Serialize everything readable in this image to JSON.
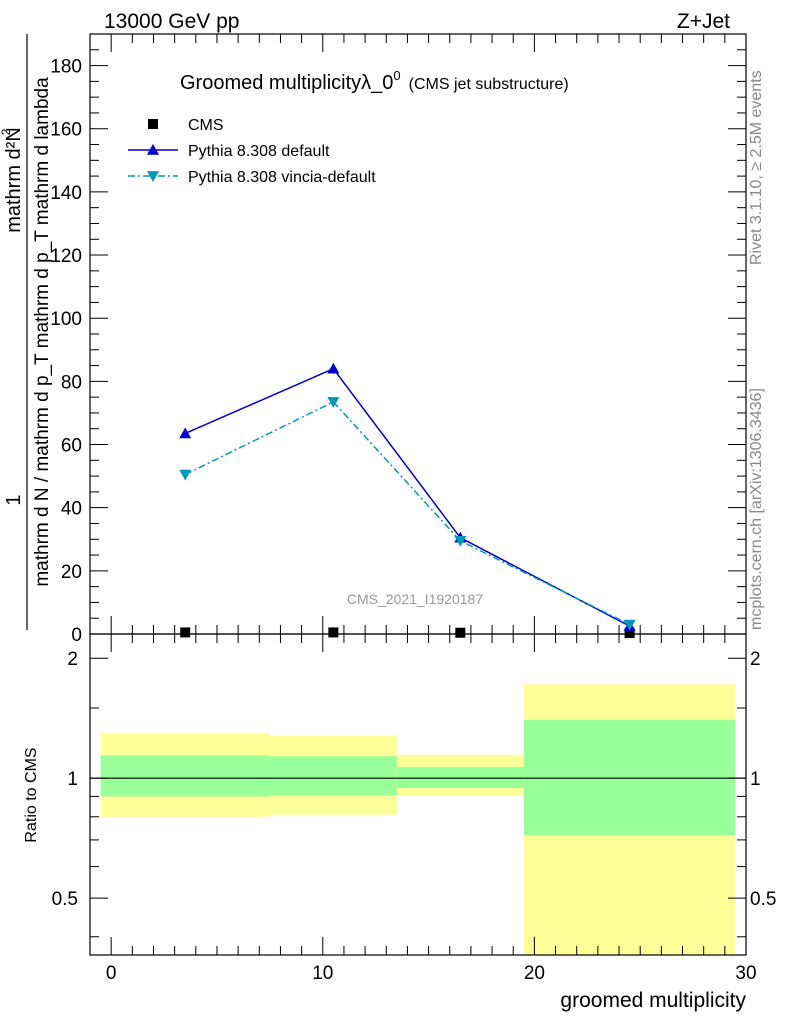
{
  "header": {
    "left": "13000 GeV pp",
    "right": "Z+Jet"
  },
  "side_labels": {
    "rivet": "Rivet 3.1.10, ≥ 2.5M events",
    "mcplots": "mcplots.cern.ch [arXiv:1306.3436]"
  },
  "watermark": "CMS_2021_I1920187",
  "chart_data": [
    {
      "type": "line",
      "title_main": "Groomed multiplicityλ_0",
      "title_sup": "0",
      "title_sub": "(CMS jet substructure)",
      "ylabel_num": "mathrm d²N",
      "ylabel_num_sup": "2",
      "ylabel_lead": "1",
      "ylabel_den": "mathrm d N / mathrm d p_T mathrm d p_T mathrm d lambda",
      "ylim": [
        0,
        190
      ],
      "xlim": [
        -1,
        30
      ],
      "ytick_labels": [
        "0",
        "20",
        "40",
        "60",
        "80",
        "100",
        "120",
        "140",
        "160",
        "180"
      ],
      "yticks": [
        0,
        20,
        40,
        60,
        80,
        100,
        120,
        140,
        160,
        180
      ],
      "legend_position": "top-left",
      "series": [
        {
          "name": "CMS",
          "marker": "square",
          "color": "#000000",
          "x": [
            3.5,
            10.5,
            16.5,
            24.5
          ],
          "y": [
            0.5,
            0.5,
            0.4,
            0.3
          ]
        },
        {
          "name": "Pythia 8.308 default",
          "marker": "triangle-up",
          "color": "#0000cc",
          "x": [
            3.5,
            10.5,
            16.5,
            24.5
          ],
          "y": [
            63.5,
            84,
            30.5,
            2.5
          ]
        },
        {
          "name": "Pythia 8.308 vincia-default",
          "marker": "triangle-down",
          "color": "#0099bb",
          "x": [
            3.5,
            10.5,
            16.5,
            24.5
          ],
          "y": [
            50.5,
            73.5,
            29.5,
            3.0
          ]
        }
      ]
    },
    {
      "type": "area",
      "ylabel": "Ratio to CMS",
      "xlabel": "groomed multiplicity",
      "ylim": [
        0.36,
        2.3
      ],
      "yscale": "log",
      "xlim": [
        -1,
        30
      ],
      "xticks": [
        0,
        10,
        20,
        30
      ],
      "xtick_labels": [
        "0",
        "10",
        "20",
        "30"
      ],
      "yticks": [
        0.5,
        1,
        2
      ],
      "ytick_labels": [
        "0.5",
        "1",
        "2"
      ],
      "reference_line": 1,
      "bands": [
        {
          "x0": -0.5,
          "x1": 7.5,
          "inner": [
            0.9,
            1.14
          ],
          "outer": [
            0.8,
            1.3
          ]
        },
        {
          "x0": 7.5,
          "x1": 13.5,
          "inner": [
            0.905,
            1.135
          ],
          "outer": [
            0.81,
            1.28
          ]
        },
        {
          "x0": 13.5,
          "x1": 19.5,
          "inner": [
            0.945,
            1.065
          ],
          "outer": [
            0.905,
            1.145
          ]
        },
        {
          "x0": 19.5,
          "x1": 29.5,
          "inner": [
            0.72,
            1.4
          ],
          "outer": [
            0.36,
            1.72
          ]
        }
      ],
      "colors": {
        "inner": "#99ff99",
        "outer": "#ffff99"
      }
    }
  ]
}
